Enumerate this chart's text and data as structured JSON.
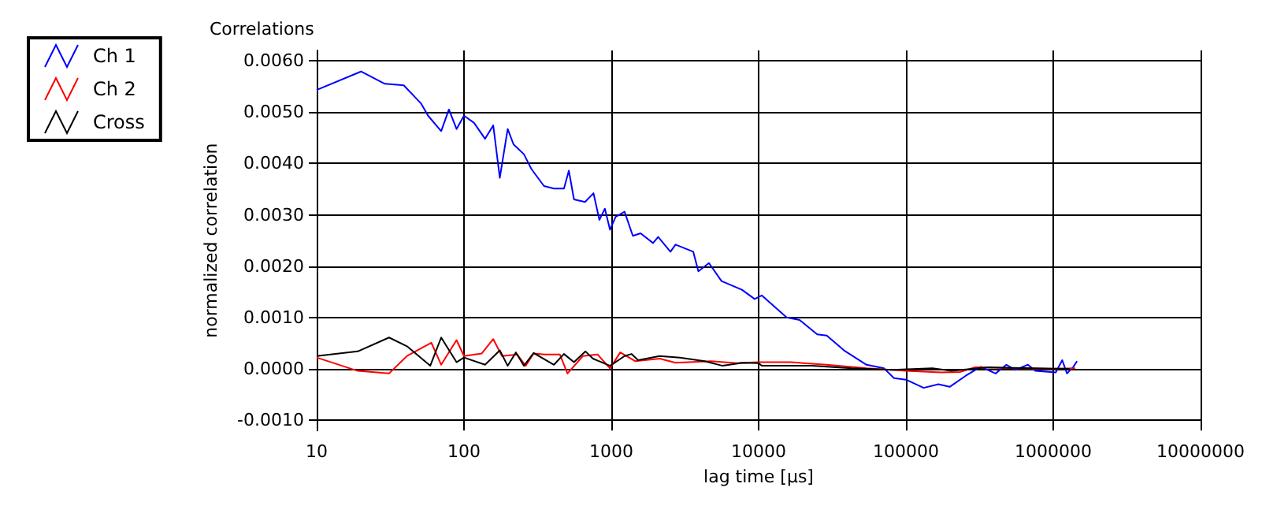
{
  "chart_data": {
    "type": "line",
    "title": "Correlations",
    "xlabel": "lag time [µs]",
    "ylabel": "normalized correlation",
    "log": "x",
    "grid": true,
    "legend": "top left",
    "xlim": [
      10,
      10000000
    ],
    "xticks": [
      10,
      100,
      1000,
      10000,
      100000,
      1000000,
      10000000
    ],
    "ylim": [
      -0.0012,
      0.0062
    ],
    "yticks": [
      {
        "value": -0.001,
        "label": "-0.0010"
      },
      {
        "value": 0,
        "label": "0.0000"
      },
      {
        "value": 0.001,
        "label": "0.0010"
      },
      {
        "value": 0.002,
        "label": "0.0020"
      },
      {
        "value": 0.003,
        "label": "0.0030"
      },
      {
        "value": 0.004,
        "label": "0.0040"
      },
      {
        "value": 0.005,
        "label": "0.0050"
      },
      {
        "value": 0.006,
        "label": "0.0060"
      }
    ],
    "series": [
      {
        "name": "Ch 1",
        "color": "#0000ff",
        "x": [
          10,
          20,
          29,
          39,
          51,
          57,
          70,
          79,
          89,
          100,
          117,
          139,
          158,
          175,
          198,
          217,
          255,
          287,
          349,
          408,
          477,
          515,
          558,
          663,
          757,
          830,
          904,
          980,
          1070,
          1230,
          1400,
          1580,
          1920,
          2080,
          2520,
          2730,
          3600,
          3900,
          4600,
          5600,
          7700,
          9400,
          10500,
          15500,
          19000,
          25000,
          29000,
          38000,
          54000,
          71000,
          83000,
          100000,
          132000,
          166000,
          198000,
          256000,
          322000,
          406000,
          481000,
          553000,
          673000,
          757000,
          955000,
          1040000,
          1150000,
          1240000,
          1370000,
          1450000
        ],
        "values": [
          0.00543,
          0.00579,
          0.00555,
          0.00552,
          0.00517,
          0.00493,
          0.00463,
          0.00505,
          0.00467,
          0.00493,
          0.00479,
          0.00448,
          0.00474,
          0.00372,
          0.00467,
          0.00437,
          0.00418,
          0.00389,
          0.00356,
          0.00351,
          0.00351,
          0.00386,
          0.0033,
          0.00325,
          0.00342,
          0.0029,
          0.00312,
          0.00271,
          0.00296,
          0.00306,
          0.00259,
          0.00264,
          0.00245,
          0.00257,
          0.00228,
          0.00242,
          0.00228,
          0.0019,
          0.00206,
          0.00171,
          0.00154,
          0.00136,
          0.00143,
          0.001,
          0.00095,
          0.00067,
          0.00065,
          0.00036,
          8e-05,
          1e-05,
          -0.00018,
          -0.00021,
          -0.00037,
          -0.0003,
          -0.00035,
          -0.00013,
          4e-05,
          -9e-05,
          8e-05,
          -2e-05,
          8e-05,
          -4e-05,
          -6e-05,
          -7e-05,
          0.00017,
          -9e-05,
          4e-05,
          0.00015
        ]
      },
      {
        "name": "Ch 2",
        "color": "#ff0000",
        "x": [
          10,
          19,
          31,
          41,
          60,
          70,
          89,
          100,
          132,
          158,
          181,
          230,
          262,
          297,
          352,
          448,
          504,
          641,
          807,
          980,
          1150,
          1450,
          2130,
          2730,
          4750,
          7100,
          10000,
          16500,
          29000,
          54000,
          100000,
          174000,
          234000,
          295000,
          955000,
          1410000
        ],
        "values": [
          0.00022,
          -4e-05,
          -9e-05,
          0.00025,
          0.00051,
          8e-05,
          0.00056,
          0.00025,
          0.0003,
          0.00058,
          0.00025,
          0.00028,
          6e-05,
          0.0003,
          0.00028,
          0.00028,
          -9e-05,
          0.00025,
          0.00028,
          1e-05,
          0.00032,
          0.00015,
          0.0002,
          0.00012,
          0.00015,
          0.00011,
          0.00013,
          0.00013,
          8e-05,
          1e-05,
          -4e-05,
          -7e-05,
          -6e-05,
          3e-05,
          0,
          1e-05
        ]
      },
      {
        "name": "Cross",
        "color": "#000000",
        "x": [
          10,
          19,
          31,
          41,
          59,
          70,
          89,
          100,
          139,
          175,
          198,
          225,
          255,
          297,
          408,
          477,
          558,
          668,
          750,
          980,
          1230,
          1370,
          1520,
          2130,
          2920,
          4300,
          5700,
          7800,
          10000,
          10500,
          23000,
          43000,
          81000,
          151000,
          204000,
          363000,
          741000,
          1290000
        ],
        "values": [
          0.00025,
          0.00034,
          0.00061,
          0.00044,
          6e-05,
          0.00061,
          0.00013,
          0.00022,
          8e-05,
          0.00036,
          6e-05,
          0.00032,
          6e-05,
          0.00031,
          8e-05,
          0.00029,
          0.00013,
          0.00034,
          0.0002,
          6e-05,
          0.00025,
          0.00029,
          0.00017,
          0.00025,
          0.00022,
          0.00015,
          6e-05,
          0.00012,
          0.00011,
          6e-05,
          6e-05,
          1e-05,
          -2e-05,
          1e-05,
          -4e-05,
          3e-05,
          1e-05,
          0
        ]
      }
    ]
  }
}
